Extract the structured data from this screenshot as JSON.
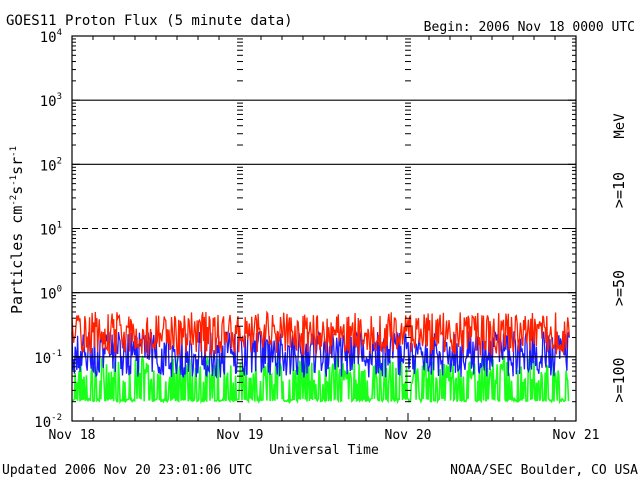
{
  "chart_data": {
    "type": "line",
    "title": "GOES11 Proton Flux (5 minute data)",
    "begin_label": "Begin: 2006 Nov 18 0000 UTC",
    "xlabel": "Universal Time",
    "ylabel_main": "Particles cm",
    "ylabel_exp1": "-2",
    "ylabel_mid1": "s",
    "ylabel_exp2": "-1",
    "ylabel_mid2": "sr",
    "ylabel_exp3": "-1",
    "y_scale": "log",
    "ylim": [
      0.01,
      10000
    ],
    "y_ticks": [
      {
        "value": 10000,
        "base": "10",
        "exp": "4"
      },
      {
        "value": 1000,
        "base": "10",
        "exp": "3"
      },
      {
        "value": 100,
        "base": "10",
        "exp": "2"
      },
      {
        "value": 10,
        "base": "10",
        "exp": "1"
      },
      {
        "value": 1,
        "base": "10",
        "exp": "0"
      },
      {
        "value": 0.1,
        "base": "10",
        "exp": "-1"
      },
      {
        "value": 0.01,
        "base": "10",
        "exp": "-2"
      }
    ],
    "x_range_days": [
      0,
      3
    ],
    "x_ticks": [
      {
        "day": 0,
        "label": "Nov 18"
      },
      {
        "day": 1,
        "label": "Nov 19"
      },
      {
        "day": 2,
        "label": "Nov 20"
      },
      {
        "day": 3,
        "label": "Nov 21"
      }
    ],
    "data_end_day": 2.96,
    "threshold_lines": [
      {
        "value": 1000,
        "style": "solid"
      },
      {
        "value": 100,
        "style": "solid"
      },
      {
        "value": 10,
        "style": "dashed"
      },
      {
        "value": 1,
        "style": "solid"
      },
      {
        "value": 0.1,
        "style": "solid"
      }
    ],
    "series": [
      {
        "name": ">=10",
        "color": "#ff2000",
        "typical": 0.2,
        "min": 0.1,
        "max": 0.5
      },
      {
        "name": ">=50",
        "color": "#1a1aff",
        "typical": 0.1,
        "min": 0.04,
        "max": 0.25
      },
      {
        "name": ">=100",
        "color": "#1aff1a",
        "typical": 0.05,
        "min": 0.02,
        "max": 0.1
      }
    ],
    "legend_unit": "MeV"
  },
  "footer": {
    "updated": "Updated 2006 Nov 20 23:01:06 UTC",
    "source": "NOAA/SEC Boulder, CO USA"
  }
}
